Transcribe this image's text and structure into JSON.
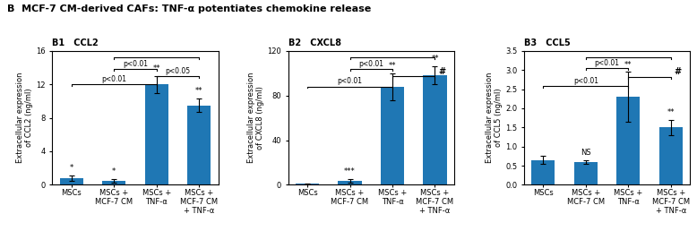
{
  "title": "B  MCF-7 CM-derived CAFs: TNF-α potentiates chemokine release",
  "chart_data": [
    {
      "type": "bar",
      "title": "B1   CCL2",
      "ylabel": "Extracellular expression\nof CCL2 (ng/ml)",
      "categories": [
        "MSCs",
        "MSCs +\nMCF-7 CM",
        "MSCs +\nTNF-α",
        "MSCs +\nMCF-7 CM\n+ TNF-α"
      ],
      "values": [
        0.8,
        0.5,
        12.0,
        9.5
      ],
      "errors": [
        0.3,
        0.2,
        1.0,
        0.8
      ],
      "ylim": [
        0,
        16
      ],
      "yticks": [
        0,
        4,
        8,
        12,
        16
      ],
      "significance": [
        "*",
        "*",
        "**",
        "**"
      ],
      "brackets": [
        {
          "from": 1,
          "to": 3,
          "y": 15.2
        },
        {
          "from": 1,
          "to": 2,
          "y": 13.8,
          "label": "p<0.01"
        },
        {
          "from": 2,
          "to": 3,
          "y": 13.0,
          "label": "p<0.05"
        },
        {
          "from": 0,
          "to": 2,
          "y": 12.0,
          "label": "p<0.01"
        }
      ]
    },
    {
      "type": "bar",
      "title": "B2   CXCL8",
      "ylabel": "Extracellular expression\nof CXCL8 (ng/ml)",
      "categories": [
        "MSCs",
        "MSCs +\nMCF-7 CM",
        "MSCs +\nTNF-α",
        "MSCs +\nMCF-7 CM\n+ TNF-α"
      ],
      "values": [
        1.0,
        3.5,
        88.0,
        98.0
      ],
      "errors": [
        0.5,
        1.5,
        12.0,
        8.0
      ],
      "ylim": [
        0,
        120
      ],
      "yticks": [
        0,
        40,
        80,
        120
      ],
      "significance": [
        null,
        "***",
        "**",
        "**"
      ],
      "brackets": [
        {
          "from": 1,
          "to": 3,
          "y": 114
        },
        {
          "from": 1,
          "to": 2,
          "y": 104,
          "label": "p<0.01"
        },
        {
          "from": 2,
          "to": 3,
          "y": 97,
          "label": "#"
        },
        {
          "from": 0,
          "to": 2,
          "y": 88,
          "label": "p<0.01"
        }
      ]
    },
    {
      "type": "bar",
      "title": "B3   CCL5",
      "ylabel": "Extracellular expression\nof CCL5 (ng/ml)",
      "categories": [
        "MSCs",
        "MSCs +\nMCF-7 CM",
        "MSCs +\nTNF-α",
        "MSCs +\nMCF-7 CM\n+ TNF-α"
      ],
      "values": [
        0.65,
        0.6,
        2.3,
        1.5
      ],
      "errors": [
        0.1,
        0.05,
        0.65,
        0.2
      ],
      "ylim": [
        0,
        3.5
      ],
      "yticks": [
        0.0,
        0.5,
        1.0,
        1.5,
        2.0,
        2.5,
        3.0,
        3.5
      ],
      "significance": [
        null,
        "NS",
        "**",
        "**"
      ],
      "brackets": [
        {
          "from": 1,
          "to": 3,
          "y": 3.33
        },
        {
          "from": 1,
          "to": 2,
          "y": 3.05,
          "label": "p<0.01"
        },
        {
          "from": 2,
          "to": 3,
          "y": 2.82,
          "label": "#"
        },
        {
          "from": 0,
          "to": 2,
          "y": 2.58,
          "label": "p<0.01"
        }
      ]
    }
  ]
}
